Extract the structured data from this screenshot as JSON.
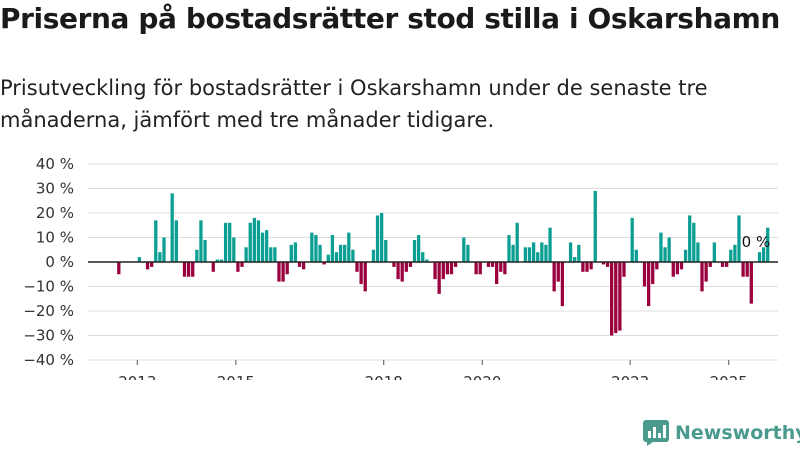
{
  "header": {
    "title": "Priserna på bostadsrätter stod stilla i Oskarshamn",
    "subtitle": "Prisutveckling för bostadsrätter i Oskarshamn under de senaste tre månaderna, jämfört med tre månader tidigare."
  },
  "brand": {
    "name": "Newsworthy"
  },
  "colors": {
    "positive": "#0b9f93",
    "negative": "#99003d",
    "grid": "#dddddd",
    "zero": "#222222",
    "brand": "#4a9a8e"
  },
  "chart_data": {
    "type": "bar",
    "title": "Priserna på bostadsrätter stod stilla i Oskarshamn",
    "xlabel": "",
    "ylabel": "",
    "ylim": [
      -40,
      40
    ],
    "y_ticks": [
      40,
      30,
      20,
      10,
      0,
      -10,
      -20,
      -30,
      -40
    ],
    "y_tick_labels": [
      "40 %",
      "30 %",
      "20 %",
      "10 %",
      "0 %",
      "−10 %",
      "−20 %",
      "−30 %",
      "−40 %"
    ],
    "x_ticks": [
      "2013",
      "2015",
      "2018",
      "2020",
      "2023",
      "2025"
    ],
    "start": "2012-01",
    "end": "2025-12",
    "annotation": "0 %",
    "values": [
      0,
      0,
      0,
      0,
      0,
      0,
      0,
      -5,
      0,
      0,
      0,
      0,
      2,
      0,
      -3,
      -2,
      17,
      4,
      10,
      0,
      28,
      17,
      0,
      -6,
      -6,
      -6,
      5,
      17,
      9,
      0,
      -4,
      1,
      1,
      16,
      16,
      10,
      -4,
      -2,
      6,
      16,
      18,
      17,
      12,
      13,
      6,
      6,
      -8,
      -8,
      -5,
      7,
      8,
      -2,
      -3,
      0,
      12,
      11,
      7,
      -1,
      3,
      11,
      4,
      7,
      7,
      12,
      5,
      -4,
      -9,
      -12,
      0,
      5,
      19,
      20,
      9,
      0,
      -2,
      -7,
      -8,
      -4,
      -2,
      9,
      11,
      4,
      1,
      0,
      -7,
      -13,
      -7,
      -5,
      -5,
      -2,
      0,
      10,
      7,
      0,
      -5,
      -5,
      0,
      -2,
      -2,
      -9,
      -4,
      -5,
      11,
      7,
      16,
      0,
      6,
      6,
      8,
      4,
      8,
      7,
      14,
      -12,
      -8,
      -18,
      0,
      8,
      2,
      7,
      -4,
      -4,
      -3,
      29,
      0,
      -1,
      -2,
      -30,
      -29,
      -28,
      -6,
      0,
      18,
      5,
      0,
      -10,
      -18,
      -9,
      -3,
      12,
      6,
      10,
      -6,
      -5,
      -3,
      5,
      19,
      16,
      8,
      -12,
      -8,
      -2,
      8,
      0,
      -2,
      -2,
      5,
      7,
      19,
      -6,
      -6,
      -17,
      0,
      4,
      6,
      14,
      0,
      0
    ]
  }
}
